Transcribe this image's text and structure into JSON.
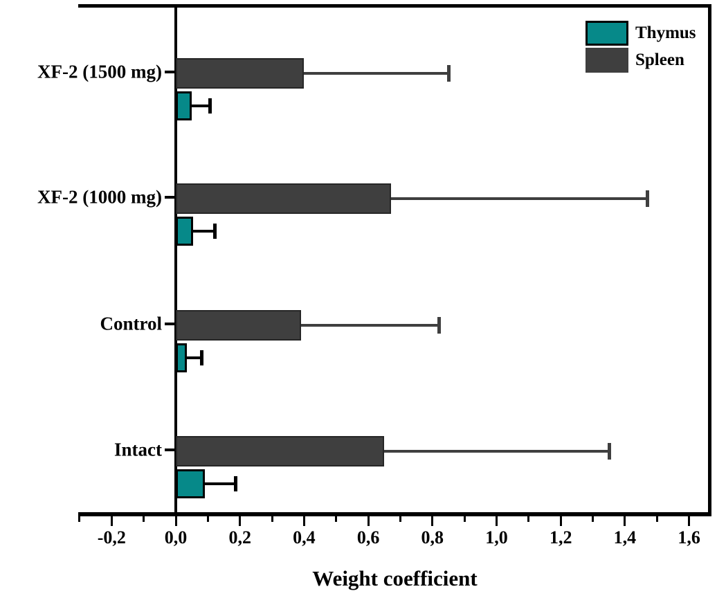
{
  "figure": {
    "xlabel": "Weight coefficient",
    "legend": [
      {
        "label": "Thymus",
        "color": "#068989",
        "border": "#000000"
      },
      {
        "label": "Spleen",
        "color": "#3f3f3f",
        "border": "none"
      }
    ]
  },
  "chart_data": {
    "type": "bar",
    "orientation": "horizontal",
    "title": "",
    "xlabel": "Weight coefficient",
    "categories": [
      "XF-2 (1500 mg)",
      "XF-2 (1000 mg)",
      "Control",
      "Intact"
    ],
    "series": [
      {
        "name": "Spleen",
        "color": "#3f3f3f",
        "error_color": "#3f3f3f",
        "values": [
          0.4,
          0.67,
          0.39,
          0.65
        ],
        "errors_plus": [
          0.45,
          0.8,
          0.43,
          0.7
        ]
      },
      {
        "name": "Thymus",
        "color": "#068989",
        "error_color": "#000000",
        "values": [
          0.05,
          0.055,
          0.035,
          0.09
        ],
        "errors_plus": [
          0.055,
          0.065,
          0.045,
          0.095
        ]
      }
    ],
    "xlim": [
      -0.305,
      1.67
    ],
    "x_tick_values": [
      -0.2,
      0.0,
      0.2,
      0.4,
      0.6,
      0.8,
      1.0,
      1.2,
      1.4,
      1.6
    ],
    "x_tick_labels": [
      "-0,2",
      "0,0",
      "0,2",
      "0,4",
      "0,6",
      "0,8",
      "1,0",
      "1,2",
      "1,4",
      "1,6"
    ],
    "x_minor_tick_step": 0.1,
    "decimal_separator": ",",
    "grid": false,
    "legend_position": "top-right"
  }
}
